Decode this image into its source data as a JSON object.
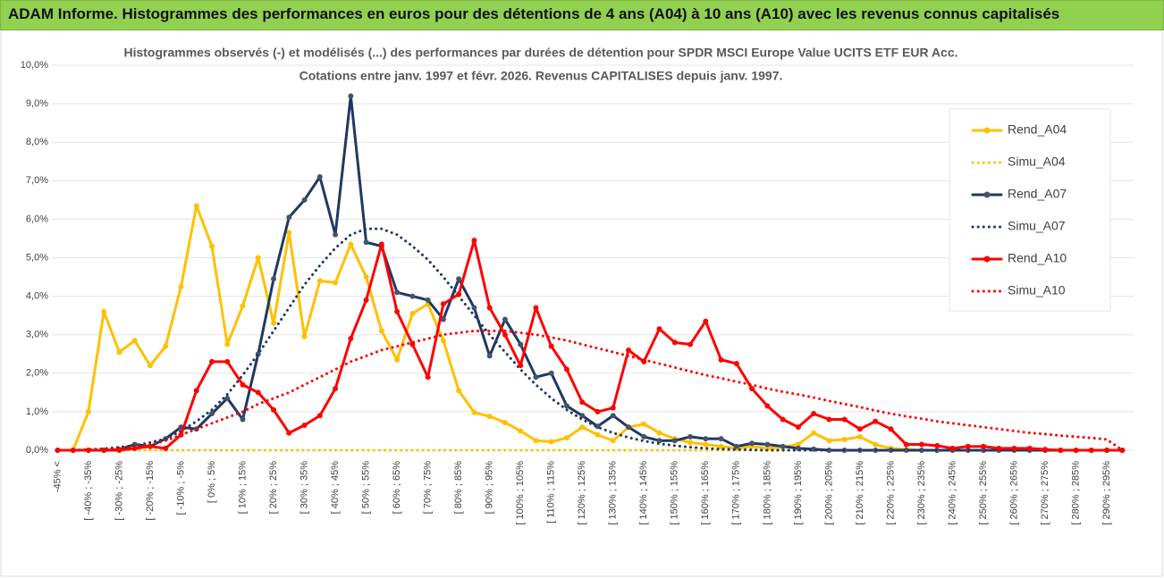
{
  "header": {
    "title": "ADAM Informe. Histogrammes des performances en euros pour des détentions de 4 ans (A04) à 10 ans (A10) avec les revenus connus capitalisés"
  },
  "chart_data": {
    "type": "line",
    "title": "Histogrammes observés (-) et modélisés (...) des performances par durées de détention pour SPDR MSCI Europe Value UCITS ETF EUR Acc.",
    "subtitle": "Cotations entre janv. 1997 et févr. 2026. Revenus CAPITALISES depuis janv. 1997.",
    "categories": [
      "-45% <",
      null,
      "[ -40% ; -35%",
      null,
      "[ -30% ; -25%",
      null,
      "[ -20% ; -15%",
      null,
      "[ -10% ; -5%",
      null,
      "[ 0% ; 5%",
      null,
      "[ 10% ; 15%",
      null,
      "[ 20% ; 25%",
      null,
      "[ 30% ; 35%",
      null,
      "[ 40% ; 45%",
      null,
      "[ 50% ; 55%",
      null,
      "[ 60% ; 65%",
      null,
      "[ 70% ; 75%",
      null,
      "[ 80% ; 85%",
      null,
      "[ 90% ; 95%",
      null,
      "[ 100% ; 105%",
      null,
      "[ 110% ; 115%",
      null,
      "[ 120% ; 125%",
      null,
      "[ 130% ; 135%",
      null,
      "[ 140% ; 145%",
      null,
      "[ 150% ; 155%",
      null,
      "[ 160% ; 165%",
      null,
      "[ 170% ; 175%",
      null,
      "[ 180% ; 185%",
      null,
      "[ 190% ; 195%",
      null,
      "[ 200% ; 205%",
      null,
      "[ 210% ; 215%",
      null,
      "[ 220% ; 225%",
      null,
      "[ 230% ; 235%",
      null,
      "[ 240% ; 245%",
      null,
      "[ 250% ; 255%",
      null,
      "[ 260% ; 265%",
      null,
      "[ 270% ; 275%",
      null,
      "[ 280% ; 285%",
      null,
      "[ 290% ; 295%",
      null
    ],
    "series": [
      {
        "name": "Rend_A04",
        "color": "#ffc000",
        "line_style": "solid",
        "markers": true,
        "values": [
          0,
          0,
          1.0,
          3.6,
          2.55,
          2.85,
          2.2,
          2.7,
          4.25,
          6.35,
          5.3,
          2.75,
          3.75,
          5.0,
          3.3,
          5.65,
          2.95,
          4.4,
          4.35,
          5.35,
          4.5,
          3.1,
          2.35,
          3.55,
          3.8,
          2.85,
          1.55,
          0.98,
          0.88,
          0.72,
          0.5,
          0.25,
          0.22,
          0.32,
          0.6,
          0.4,
          0.25,
          0.6,
          0.68,
          0.45,
          0.3,
          0.2,
          0.15,
          0.1,
          0.05,
          0.1,
          0.05,
          0.08,
          0.15,
          0.45,
          0.25,
          0.28,
          0.35,
          0.15,
          0.05,
          0.02,
          0,
          0,
          0,
          0,
          0,
          0,
          0,
          0,
          0,
          0,
          0,
          0,
          0,
          0
        ]
      },
      {
        "name": "Simu_A04",
        "color": "#ffc000",
        "line_style": "dotted",
        "markers": false,
        "values": [
          0,
          0,
          0,
          0,
          0,
          0,
          0,
          0,
          0,
          0,
          0,
          0,
          0,
          0,
          0,
          0,
          0,
          0,
          0,
          0,
          0,
          0,
          0,
          0,
          0,
          0,
          0,
          0,
          0,
          0,
          0,
          0,
          0,
          0,
          0,
          0,
          0,
          0,
          0,
          0,
          0,
          0,
          0,
          0,
          0,
          0,
          0,
          0,
          0,
          0,
          0,
          0,
          0,
          0,
          0,
          0,
          0,
          0,
          0,
          0,
          0,
          0,
          0,
          0,
          0,
          0,
          0,
          0,
          0,
          0
        ]
      },
      {
        "name": "Rend_A07",
        "color": "#1f3864",
        "line_style": "solid",
        "markers": true,
        "values": [
          0,
          0,
          0,
          0,
          0.02,
          0.15,
          0.1,
          0.3,
          0.6,
          0.55,
          0.95,
          1.35,
          0.8,
          2.5,
          4.45,
          6.05,
          6.5,
          7.1,
          5.6,
          9.2,
          5.4,
          5.3,
          4.1,
          4.0,
          3.9,
          3.4,
          4.45,
          3.7,
          2.45,
          3.4,
          2.75,
          1.9,
          2.0,
          1.15,
          0.9,
          0.62,
          0.9,
          0.6,
          0.35,
          0.25,
          0.25,
          0.35,
          0.3,
          0.3,
          0.1,
          0.18,
          0.15,
          0.1,
          0.05,
          0.03,
          0,
          0,
          0,
          0,
          0,
          0,
          0,
          0,
          0,
          0,
          0,
          0,
          0,
          0,
          0,
          0,
          0,
          0,
          0,
          0
        ]
      },
      {
        "name": "Simu_A07",
        "color": "#1f3864",
        "line_style": "dotted",
        "markers": false,
        "values": [
          0,
          0,
          0.02,
          0.04,
          0.08,
          0.12,
          0.2,
          0.3,
          0.5,
          0.75,
          1.05,
          1.45,
          1.95,
          2.5,
          3.1,
          3.7,
          4.3,
          4.8,
          5.25,
          5.6,
          5.75,
          5.75,
          5.6,
          5.3,
          4.95,
          4.5,
          4.0,
          3.5,
          3.0,
          2.55,
          2.1,
          1.7,
          1.35,
          1.05,
          0.8,
          0.6,
          0.45,
          0.33,
          0.24,
          0.17,
          0.12,
          0.08,
          0.05,
          0.03,
          0.02,
          0.01,
          0,
          0,
          0,
          0,
          0,
          0,
          0,
          0,
          0,
          0,
          0,
          0,
          0,
          0,
          0,
          0,
          0,
          0,
          0,
          0,
          0,
          0,
          0,
          0
        ]
      },
      {
        "name": "Rend_A10",
        "color": "#ff0000",
        "line_style": "solid",
        "markers": true,
        "values": [
          0,
          0,
          0,
          0,
          0,
          0.05,
          0.1,
          0.05,
          0.4,
          1.55,
          2.3,
          2.3,
          1.7,
          1.5,
          1.05,
          0.45,
          0.65,
          0.9,
          1.6,
          2.9,
          3.9,
          5.35,
          3.6,
          2.75,
          1.9,
          3.8,
          4.05,
          5.45,
          3.7,
          3.0,
          2.2,
          3.7,
          2.7,
          2.1,
          1.25,
          1.0,
          1.1,
          2.6,
          2.3,
          3.15,
          2.8,
          2.75,
          3.35,
          2.35,
          2.25,
          1.6,
          1.15,
          0.8,
          0.6,
          0.95,
          0.8,
          0.8,
          0.55,
          0.75,
          0.55,
          0.15,
          0.15,
          0.12,
          0.05,
          0.1,
          0.1,
          0.05,
          0.05,
          0.05,
          0.02,
          0,
          0,
          0,
          0,
          0
        ]
      },
      {
        "name": "Simu_A10",
        "color": "#ff0000",
        "line_style": "dotted",
        "markers": false,
        "values": [
          0,
          0,
          0.01,
          0.02,
          0.04,
          0.08,
          0.15,
          0.25,
          0.4,
          0.55,
          0.7,
          0.85,
          1.0,
          1.2,
          1.35,
          1.5,
          1.7,
          1.9,
          2.1,
          2.3,
          2.45,
          2.6,
          2.7,
          2.8,
          2.9,
          3.0,
          3.05,
          3.1,
          3.1,
          3.1,
          3.05,
          3.0,
          2.93,
          2.85,
          2.75,
          2.65,
          2.55,
          2.45,
          2.35,
          2.25,
          2.15,
          2.05,
          1.95,
          1.87,
          1.78,
          1.7,
          1.6,
          1.52,
          1.45,
          1.37,
          1.28,
          1.2,
          1.12,
          1.03,
          0.95,
          0.88,
          0.82,
          0.75,
          0.7,
          0.65,
          0.6,
          0.55,
          0.5,
          0.45,
          0.42,
          0.38,
          0.35,
          0.32,
          0.28,
          0
        ]
      }
    ],
    "ylim": [
      0,
      10
    ],
    "yticks": [
      {
        "value": 0,
        "label": "0,0%"
      },
      {
        "value": 1,
        "label": "1,0%"
      },
      {
        "value": 2,
        "label": "2,0%"
      },
      {
        "value": 3,
        "label": "3,0%"
      },
      {
        "value": 4,
        "label": "4,0%"
      },
      {
        "value": 5,
        "label": "5,0%"
      },
      {
        "value": 6,
        "label": "6,0%"
      },
      {
        "value": 7,
        "label": "7,0%"
      },
      {
        "value": 8,
        "label": "8,0%"
      },
      {
        "value": 9,
        "label": "9,0%"
      },
      {
        "value": 10,
        "label": "10,0%"
      }
    ],
    "grid": true,
    "legend": "right"
  }
}
